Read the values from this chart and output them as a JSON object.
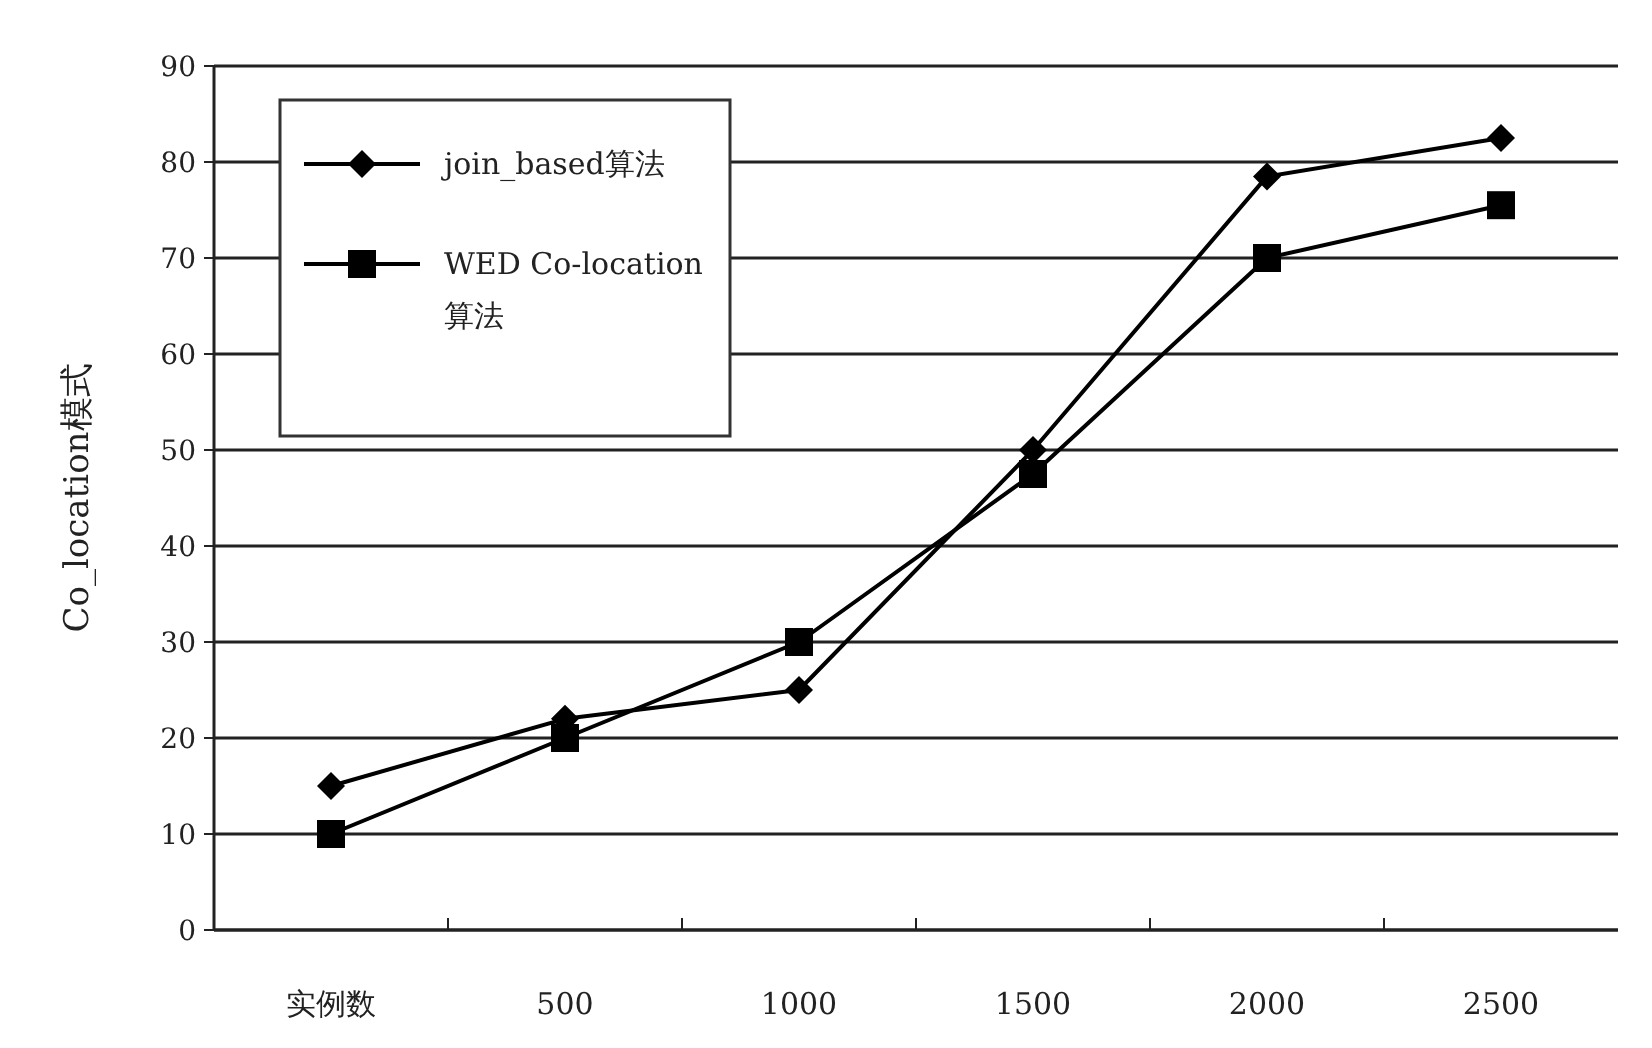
{
  "chart_data": {
    "type": "line",
    "ylabel": "Co_location模式",
    "categories": [
      "实例数",
      "500",
      "1000",
      "1500",
      "2000",
      "2500"
    ],
    "series": [
      {
        "name": "join_based算法",
        "color": "#000000",
        "marker": "diamond",
        "values": [
          15,
          22,
          25,
          50,
          78.5,
          82.5
        ]
      },
      {
        "name": "WED Co-location 算法",
        "color": "#000000",
        "marker": "square",
        "values": [
          10,
          20,
          30,
          47.5,
          70,
          75.5
        ]
      }
    ],
    "ylim": [
      0,
      90
    ],
    "yticks": [
      0,
      10,
      20,
      30,
      40,
      50,
      60,
      70,
      80,
      90
    ],
    "grid": "y",
    "legend": "top left",
    "line_style": "solid"
  }
}
